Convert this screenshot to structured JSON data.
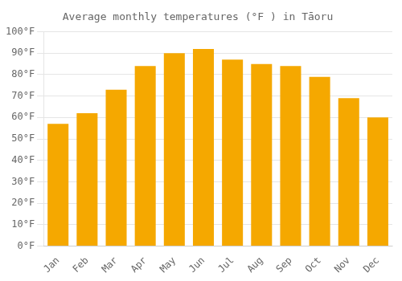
{
  "chart_data": {
    "type": "bar",
    "title": "Average monthly temperatures (°F ) in Tāoru",
    "categories": [
      "Jan",
      "Feb",
      "Mar",
      "Apr",
      "May",
      "Jun",
      "Jul",
      "Aug",
      "Sep",
      "Oct",
      "Nov",
      "Dec"
    ],
    "values": [
      57,
      62,
      73,
      84,
      90,
      92,
      87,
      85,
      84,
      79,
      69,
      60
    ],
    "color": "#F5A800",
    "ylim": [
      0,
      100
    ],
    "yticks": [
      {
        "value": 0,
        "label": "0°F"
      },
      {
        "value": 10,
        "label": "10°F"
      },
      {
        "value": 20,
        "label": "20°F"
      },
      {
        "value": 30,
        "label": "30°F"
      },
      {
        "value": 40,
        "label": "40°F"
      },
      {
        "value": 50,
        "label": "50°F"
      },
      {
        "value": 60,
        "label": "60°F"
      },
      {
        "value": 70,
        "label": "70°F"
      },
      {
        "value": 80,
        "label": "80°F"
      },
      {
        "value": 90,
        "label": "90°F"
      },
      {
        "value": 100,
        "label": "100°F"
      }
    ],
    "grid": true
  }
}
